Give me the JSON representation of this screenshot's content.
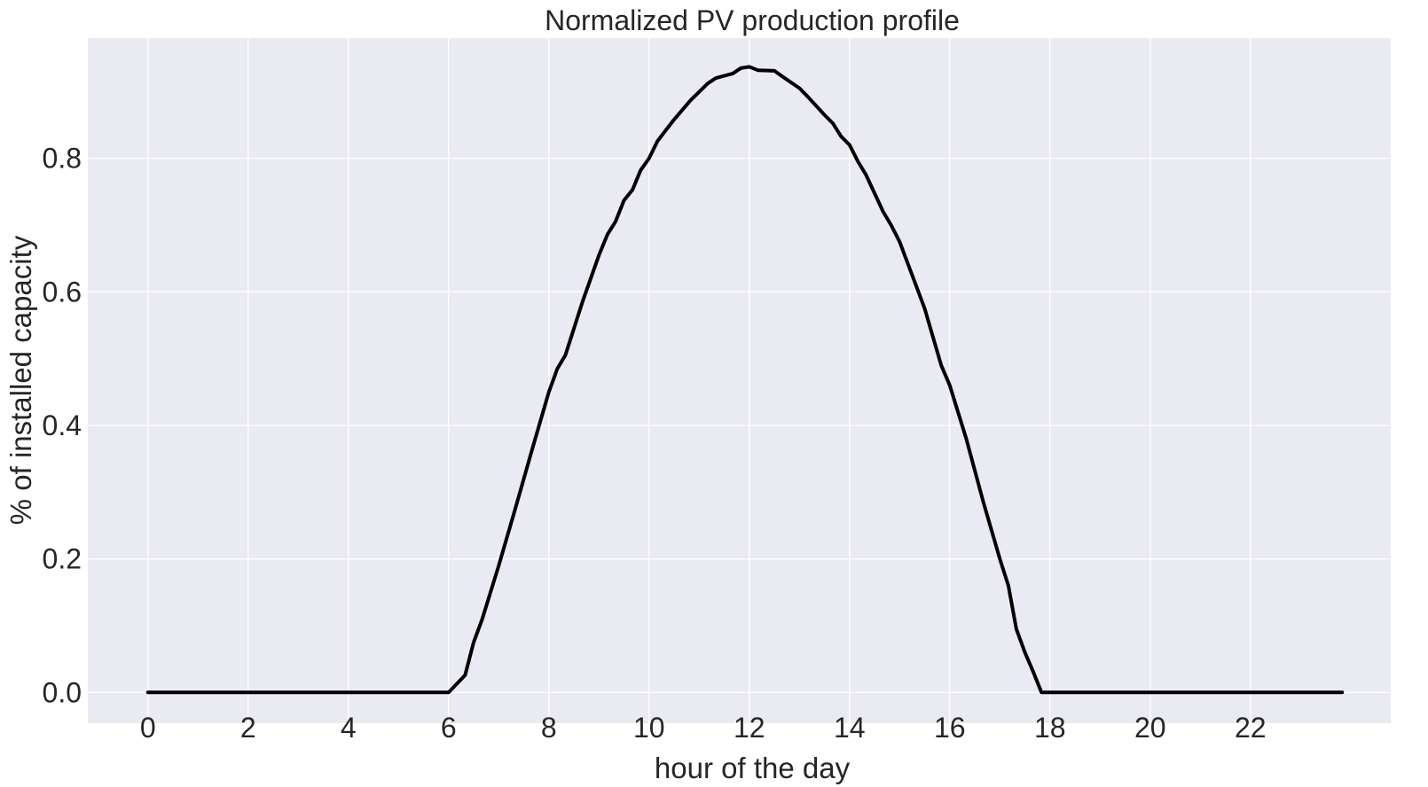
{
  "chart_data": {
    "type": "line",
    "title": "Normalized PV production profile",
    "xlabel": "hour of the day",
    "ylabel": "% of installed capacity",
    "xlim": [
      -1.2,
      24.8
    ],
    "ylim": [
      -0.046,
      0.98
    ],
    "xticks": [
      0,
      2,
      4,
      6,
      8,
      10,
      12,
      14,
      16,
      18,
      20,
      22
    ],
    "xtick_labels": [
      "0",
      "2",
      "4",
      "6",
      "8",
      "10",
      "12",
      "14",
      "16",
      "18",
      "20",
      "22"
    ],
    "yticks": [
      0.0,
      0.2,
      0.4,
      0.6,
      0.8
    ],
    "ytick_labels": [
      "0.0",
      "0.2",
      "0.4",
      "0.6",
      "0.8"
    ],
    "grid": true,
    "colors": {
      "plot_background": "#eaeaf2",
      "grid": "#ffffff",
      "line": "#000000",
      "text": "#262626"
    },
    "series": [
      {
        "x": [
          0,
          6.0,
          6.33,
          6.5,
          6.67,
          7.0,
          7.33,
          7.67,
          8.0,
          8.17,
          8.33,
          8.67,
          9.0,
          9.17,
          9.33,
          9.5,
          9.67,
          9.83,
          10.0,
          10.17,
          10.5,
          10.83,
          11.17,
          11.33,
          11.67,
          11.83,
          12.0,
          12.17,
          12.5,
          12.67,
          13.0,
          13.17,
          13.5,
          13.67,
          13.83,
          14.0,
          14.17,
          14.33,
          14.67,
          14.83,
          15.0,
          15.5,
          15.83,
          16.0,
          16.33,
          16.67,
          17.0,
          17.17,
          17.33,
          17.5,
          17.67,
          17.83,
          23.83
        ],
        "y": [
          0.0,
          0.0,
          0.026,
          0.075,
          0.11,
          0.19,
          0.275,
          0.365,
          0.45,
          0.485,
          0.505,
          0.585,
          0.655,
          0.686,
          0.705,
          0.737,
          0.753,
          0.782,
          0.8,
          0.826,
          0.858,
          0.887,
          0.912,
          0.92,
          0.927,
          0.935,
          0.937,
          0.932,
          0.931,
          0.922,
          0.905,
          0.892,
          0.865,
          0.852,
          0.833,
          0.82,
          0.795,
          0.775,
          0.72,
          0.7,
          0.675,
          0.575,
          0.49,
          0.46,
          0.38,
          0.285,
          0.2,
          0.16,
          0.095,
          0.06,
          0.03,
          0.0,
          0.0
        ]
      }
    ]
  }
}
